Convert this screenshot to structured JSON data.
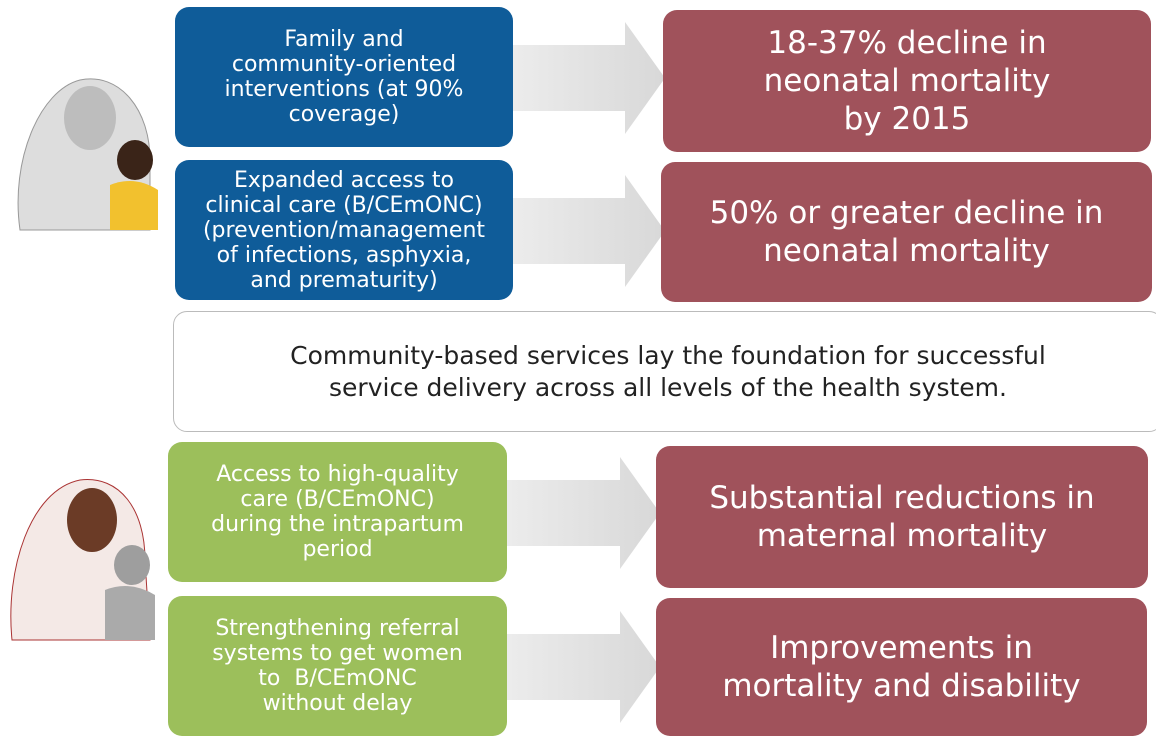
{
  "rows": [
    {
      "left": {
        "color": "#0f5c99",
        "lines": [
          "Family and",
          "community-oriented",
          "interventions (at 90%",
          "coverage)"
        ]
      },
      "right": {
        "color": "#a0525b",
        "lines": [
          "18-37% decline in",
          "neonatal mortality",
          "by 2015"
        ]
      }
    },
    {
      "left": {
        "color": "#0f5c99",
        "lines": [
          "Expanded access to",
          "clinical care (B/CEmONC)",
          "(prevention/management",
          "of infections, asphyxia,",
          "and prematurity)"
        ]
      },
      "right": {
        "color": "#a0525b",
        "lines": [
          "50% or greater decline in",
          "neonatal mortality"
        ]
      }
    },
    {
      "left": {
        "color": "#9cbf5b",
        "lines": [
          "Access to high-quality",
          "care (B/CEmONC)",
          "during the intrapartum",
          "period"
        ]
      },
      "right": {
        "color": "#a0525b",
        "lines": [
          "Substantial reductions in",
          "maternal mortality"
        ]
      }
    },
    {
      "left": {
        "color": "#9cbf5b",
        "lines": [
          "Strengthening referral",
          "systems to get women",
          "to  B/CEmONC",
          "without delay"
        ]
      },
      "right": {
        "color": "#a0525b",
        "lines": [
          "Improvements in",
          "mortality and disability"
        ]
      }
    }
  ],
  "statement": {
    "lines": [
      "Community-based services lay the foundation for successful",
      "service delivery across all levels of the health system."
    ]
  }
}
